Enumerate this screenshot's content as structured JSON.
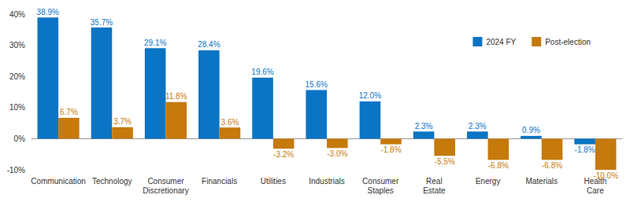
{
  "chart_data": {
    "type": "bar",
    "categories": [
      "Communication",
      "Technology",
      "Consumer\nDiscretionary",
      "Financials",
      "Utilities",
      "Industrials",
      "Consumer\nStaples",
      "Real\nEstate",
      "Energy",
      "Materials",
      "Health\nCare"
    ],
    "series": [
      {
        "name": "2024 FY",
        "color": "#0b74c4",
        "values": [
          38.9,
          35.7,
          29.1,
          28.4,
          19.6,
          15.6,
          12.0,
          2.3,
          2.3,
          0.9,
          -1.8
        ],
        "value_labels": [
          "38.9%",
          "35.7%",
          "29.1%",
          "28.4%",
          "19.6%",
          "15.6%",
          "12.0%",
          "2.3%",
          "2.3%",
          "0.9%",
          "-1.8%"
        ]
      },
      {
        "name": "Post-election",
        "color": "#c67a0c",
        "values": [
          6.7,
          3.7,
          11.8,
          3.6,
          -3.2,
          -3.0,
          -1.8,
          -5.5,
          -6.8,
          -6.8,
          -10.0
        ],
        "value_labels": [
          "6.7%",
          "3.7%",
          "11.8%",
          "3.6%",
          "-3.2%",
          "-3.0%",
          "-1.8%",
          "-5.5%",
          "-6.8%",
          "-6.8%",
          "-10.0%"
        ]
      }
    ],
    "ylim": [
      -10,
      40
    ],
    "yticks": [
      {
        "value": -10,
        "label": "-10%"
      },
      {
        "value": 0,
        "label": "0%"
      },
      {
        "value": 10,
        "label": "10%"
      },
      {
        "value": 20,
        "label": "20%"
      },
      {
        "value": 30,
        "label": "30%"
      },
      {
        "value": 40,
        "label": "40%"
      }
    ],
    "grid": false,
    "legend": "top-right",
    "data_labels": true
  }
}
